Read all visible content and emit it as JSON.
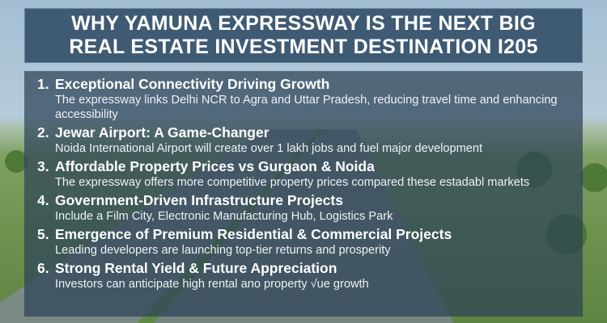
{
  "title": {
    "line1": "WHY YAMUNA EXPRESSWAY IS THE NEXT BIG",
    "line2": "REAL ESTATE INVESTMENT DESTINATION I205"
  },
  "items": [
    {
      "num": "1.",
      "heading": "Exceptional Connectivity Driving Growth",
      "text": "The expressway links Delhi NCR to Agra and Uttar Pradesh, reducing travel time and enhancing accessibility"
    },
    {
      "num": "2.",
      "heading": "Jewar Airport: A Game-Changer",
      "text": "Noida International Airport will create over 1 lakh jobs and fuel major development"
    },
    {
      "num": "3.",
      "heading": "Affordable Property Prices vs Gurgaon & Noida",
      "text": "The expressway offers more competitive property prices compared these estadabl markets"
    },
    {
      "num": "4.",
      "heading": "Government-Driven Infrastructure Projects",
      "text": "Include a Film City, Electronic Manufacturing Hub, Logistics Park"
    },
    {
      "num": "5.",
      "heading": "Emergence of Premium Residential & Commercial Projects",
      "text": "Leading developers are launching top-tier returns and prosperity"
    },
    {
      "num": "6.",
      "heading": "Strong Rental Yield & Future Appreciation",
      "text": "Investors can anticipate high rental ano property √ue growth"
    }
  ],
  "colors": {
    "title_bg": "#3f5a73",
    "panel_bg": "#2d4258",
    "text": "#ffffff"
  }
}
